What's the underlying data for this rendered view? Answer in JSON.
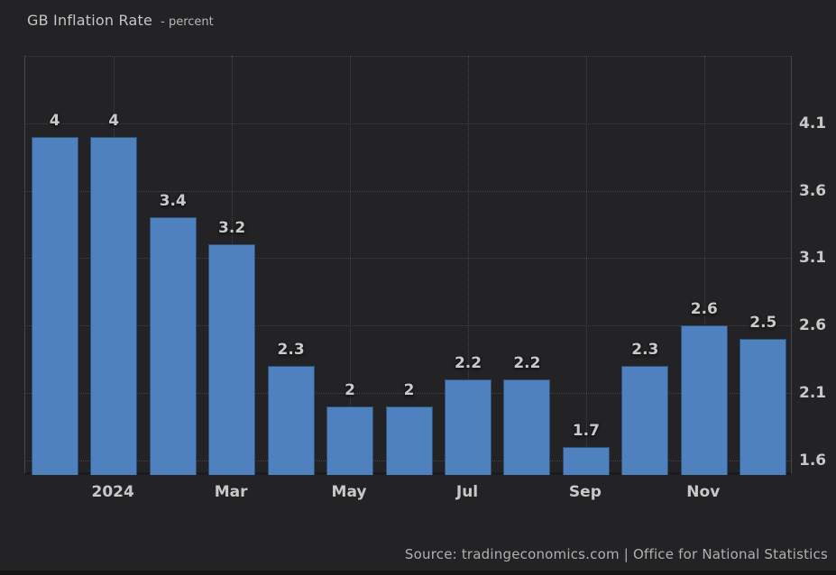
{
  "header": {
    "title": "GB Inflation Rate",
    "subtitle": "- percent"
  },
  "footer": {
    "source": "Source: tradingeconomics.com | Office for National Statistics"
  },
  "colors": {
    "background": "#232325",
    "bar": "#4e81be",
    "grid": "#434347",
    "tick_text": "#c8c8c8",
    "value_label_text": "#c9c9c9",
    "source_text": "#b0b0b0"
  },
  "chart_data": {
    "type": "bar",
    "title": "GB Inflation Rate",
    "ylabel": "percent",
    "values": [
      4,
      4,
      3.4,
      3.2,
      2.3,
      2,
      2,
      2.2,
      2.2,
      1.7,
      2.3,
      2.6,
      2.5
    ],
    "bar_labels": [
      "4",
      "4",
      "3.4",
      "3.2",
      "2.3",
      "2",
      "2",
      "2.2",
      "2.2",
      "1.7",
      "2.3",
      "2.6",
      "2.5"
    ],
    "x_tick_labels": [
      "2024",
      "Mar",
      "May",
      "Jul",
      "Sep",
      "Nov"
    ],
    "x_tick_slots": [
      1,
      3,
      5,
      7,
      9,
      11
    ],
    "y_tick_labels": [
      "4.1",
      "3.6",
      "3.1",
      "2.6",
      "2.1",
      "1.6"
    ],
    "y_grid_values": [
      4.6,
      4.1,
      3.6,
      3.1,
      2.6,
      2.1,
      1.6
    ],
    "ylim": [
      1.49,
      4.6
    ],
    "grid_style": "dotted",
    "y_axis_side": "right",
    "legend": "none"
  }
}
